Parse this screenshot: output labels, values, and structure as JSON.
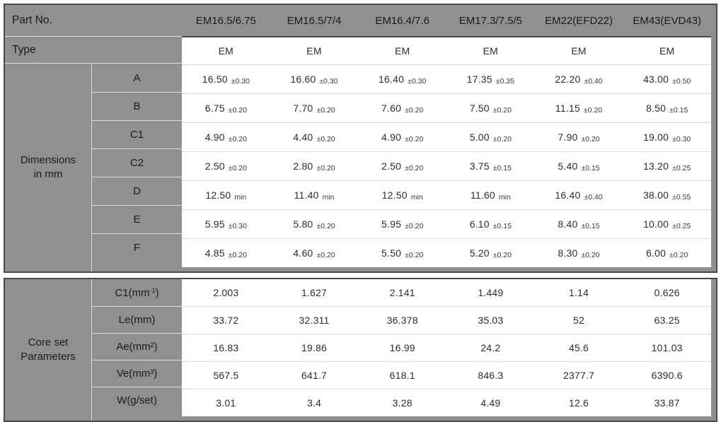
{
  "table": {
    "part_no_label": "Part No.",
    "type_label": "Type",
    "columns": [
      "EM16.5/6.75",
      "EM16.5/7/4",
      "EM16.4/7.6",
      "EM17.3/7.5/5",
      "EM22(EFD22)",
      "EM43(EVD43)"
    ],
    "type_values": [
      "EM",
      "EM",
      "EM",
      "EM",
      "EM",
      "EM"
    ],
    "dimensions": {
      "section_label_line1": "Dimensions",
      "section_label_line2": "in mm",
      "rows": [
        {
          "label": "A",
          "cells": [
            {
              "v": "16.50",
              "t": "±0.30"
            },
            {
              "v": "16.60",
              "t": "±0.30"
            },
            {
              "v": "16.40",
              "t": "±0.30"
            },
            {
              "v": "17.35",
              "t": "±0.35"
            },
            {
              "v": "22.20",
              "t": "±0.40"
            },
            {
              "v": "43.00",
              "t": "±0.50"
            }
          ]
        },
        {
          "label": "B",
          "cells": [
            {
              "v": "6.75",
              "t": "±0.20"
            },
            {
              "v": "7.70",
              "t": "±0.20"
            },
            {
              "v": "7.60",
              "t": "±0.20"
            },
            {
              "v": "7.50",
              "t": "±0.20"
            },
            {
              "v": "11.15",
              "t": "±0.20"
            },
            {
              "v": "8.50",
              "t": "±0.15"
            }
          ]
        },
        {
          "label": "C1",
          "cells": [
            {
              "v": "4.90",
              "t": "±0.20"
            },
            {
              "v": "4.40",
              "t": "±0.20"
            },
            {
              "v": "4.90",
              "t": "±0.20"
            },
            {
              "v": "5.00",
              "t": "±0.20"
            },
            {
              "v": "7.90",
              "t": "±0.20"
            },
            {
              "v": "19.00",
              "t": "±0.30"
            }
          ]
        },
        {
          "label": "C2",
          "cells": [
            {
              "v": "2.50",
              "t": "±0.20"
            },
            {
              "v": "2.80",
              "t": "±0.20"
            },
            {
              "v": "2.50",
              "t": "±0.20"
            },
            {
              "v": "3.75",
              "t": "±0.15"
            },
            {
              "v": "5.40",
              "t": "±0.15"
            },
            {
              "v": "13.20",
              "t": "±0.25"
            }
          ]
        },
        {
          "label": "D",
          "cells": [
            {
              "v": "12.50",
              "t": "min"
            },
            {
              "v": "11.40",
              "t": "min"
            },
            {
              "v": "12.50",
              "t": "min"
            },
            {
              "v": "11.60",
              "t": "min"
            },
            {
              "v": "16.40",
              "t": "±0.40"
            },
            {
              "v": "38.00",
              "t": "±0.55"
            }
          ]
        },
        {
          "label": "E",
          "cells": [
            {
              "v": "5.95",
              "t": "±0.30"
            },
            {
              "v": "5.80",
              "t": "±0.20"
            },
            {
              "v": "5.95",
              "t": "±0.20"
            },
            {
              "v": "6.10",
              "t": "±0.15"
            },
            {
              "v": "8.40",
              "t": "±0.15"
            },
            {
              "v": "10.00",
              "t": "±0.25"
            }
          ]
        },
        {
          "label": "F",
          "cells": [
            {
              "v": "4.85",
              "t": "±0.20"
            },
            {
              "v": "4.60",
              "t": "±0.20"
            },
            {
              "v": "5.50",
              "t": "±0.20"
            },
            {
              "v": "5.20",
              "t": "±0.20"
            },
            {
              "v": "8.30",
              "t": "±0.20"
            },
            {
              "v": "6.00",
              "t": "±0.20"
            }
          ]
        }
      ]
    },
    "core_set": {
      "section_label_line1": "Core set",
      "section_label_line2": "Parameters",
      "rows": [
        {
          "label_main": "C1(mm",
          "label_sup": "-1",
          "label_end": ")",
          "values": [
            "2.003",
            "1.627",
            "2.141",
            "1.449",
            "1.14",
            "0.626"
          ]
        },
        {
          "label_main": "Le(mm)",
          "values": [
            "33.72",
            "32.311",
            "36.378",
            "35.03",
            "52",
            "63.25"
          ]
        },
        {
          "label_main": "Ae(mm²)",
          "values": [
            "16.83",
            "19.86",
            "16.99",
            "24.2",
            "45.6",
            "101.03"
          ]
        },
        {
          "label_main": "Ve(mm³)",
          "values": [
            "567.5",
            "641.7",
            "618.1",
            "846.3",
            "2377.7",
            "6390.6"
          ]
        },
        {
          "label_main": "W(g/set)",
          "values": [
            "3.01",
            "3.4",
            "3.28",
            "4.49",
            "12.6",
            "33.87"
          ]
        }
      ]
    },
    "colors": {
      "panel_gray": "#909090",
      "border_dark": "#4a4a4a",
      "cell_white": "#ffffff",
      "text_dark": "#1b1b1b"
    }
  }
}
